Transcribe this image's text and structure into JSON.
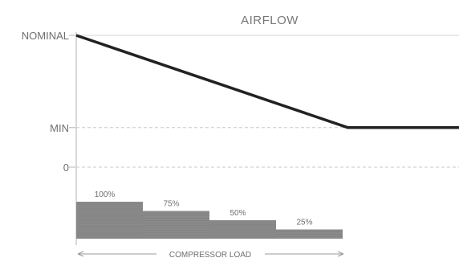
{
  "chart_data": {
    "type": "line",
    "title": "AIRFLOW",
    "y_tick_labels": [
      "NOMINAL",
      "MIN",
      "0"
    ],
    "y_values": {
      "NOMINAL": 1.0,
      "MIN": 0.3,
      "0": 0.0
    },
    "series": [
      {
        "x": [
          0,
          0.71,
          1.0
        ],
        "y": [
          1.0,
          0.3,
          0.3
        ]
      }
    ],
    "xlim": [
      0,
      1
    ],
    "ylim": [
      0,
      1
    ],
    "compressor_steps": {
      "labels": [
        "100%",
        "75%",
        "50%",
        "25%"
      ],
      "values": [
        100,
        75,
        50,
        25
      ]
    },
    "xlabel": "COMPRESSOR LOAD",
    "colors": {
      "line": "#222222",
      "bars": "#8a8a8a",
      "axis": "#b5b5b5",
      "gridline": "#c8c8c8",
      "text": "#6f6f6f"
    }
  }
}
